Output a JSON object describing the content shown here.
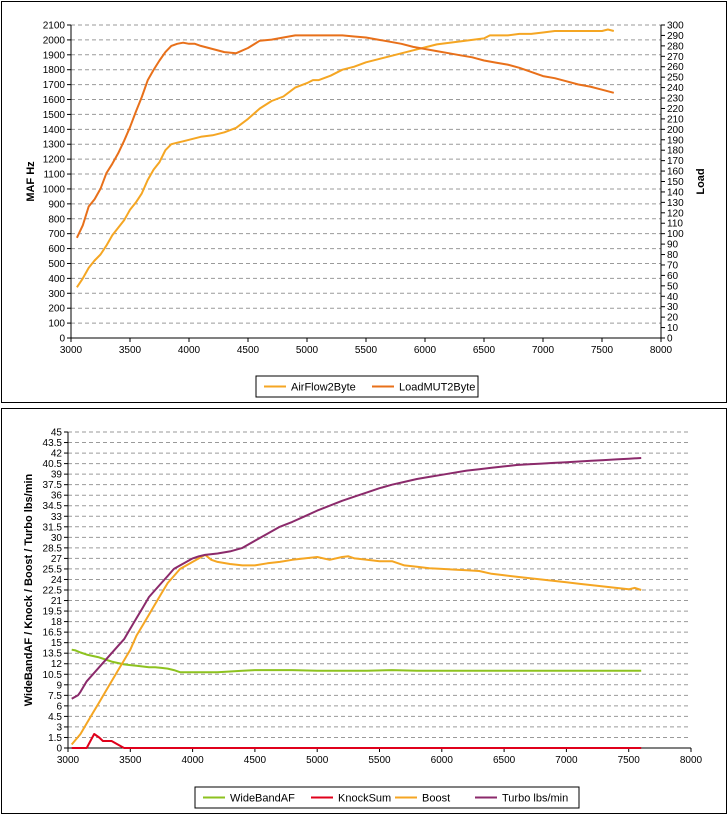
{
  "chart_data": [
    {
      "type": "line",
      "title": "",
      "xlabel": "",
      "ylabel": "MAF Hz",
      "y2label": "Load",
      "xlim": [
        3000,
        8000
      ],
      "ylim": [
        0,
        2100
      ],
      "y2lim": [
        0,
        300
      ],
      "x_ticks": [
        3000,
        3500,
        4000,
        4500,
        5000,
        5500,
        6000,
        6500,
        7000,
        7500,
        8000
      ],
      "y_ticks": [
        0,
        100,
        200,
        300,
        400,
        500,
        600,
        700,
        800,
        900,
        1000,
        1100,
        1200,
        1300,
        1400,
        1500,
        1600,
        1700,
        1800,
        1900,
        2000,
        2100
      ],
      "y2_ticks": [
        0,
        10,
        20,
        30,
        40,
        50,
        60,
        70,
        80,
        90,
        100,
        110,
        120,
        130,
        140,
        150,
        160,
        170,
        180,
        190,
        200,
        210,
        220,
        230,
        240,
        250,
        260,
        270,
        280,
        290,
        300
      ],
      "grid": true,
      "legend_position": "bottom",
      "series": [
        {
          "name": "AirFlow2Byte",
          "axis": "left",
          "color": "#f5a623",
          "x": [
            3050,
            3100,
            3150,
            3200,
            3250,
            3300,
            3350,
            3400,
            3450,
            3500,
            3550,
            3600,
            3650,
            3700,
            3750,
            3800,
            3850,
            3900,
            3950,
            4000,
            4100,
            4200,
            4300,
            4400,
            4500,
            4600,
            4700,
            4800,
            4900,
            5000,
            5050,
            5100,
            5200,
            5300,
            5400,
            5500,
            5600,
            5700,
            5800,
            5900,
            6000,
            6100,
            6200,
            6300,
            6400,
            6500,
            6550,
            6600,
            6700,
            6800,
            6900,
            7000,
            7100,
            7200,
            7300,
            7400,
            7500,
            7550,
            7600
          ],
          "y": [
            340,
            400,
            470,
            520,
            560,
            620,
            690,
            740,
            790,
            860,
            910,
            970,
            1060,
            1130,
            1180,
            1260,
            1300,
            1310,
            1320,
            1330,
            1350,
            1360,
            1380,
            1410,
            1470,
            1540,
            1590,
            1620,
            1680,
            1710,
            1730,
            1730,
            1760,
            1800,
            1820,
            1850,
            1870,
            1890,
            1910,
            1930,
            1950,
            1970,
            1980,
            1990,
            2000,
            2010,
            2030,
            2030,
            2030,
            2040,
            2040,
            2050,
            2060,
            2060,
            2060,
            2060,
            2060,
            2070,
            2060
          ]
        },
        {
          "name": "LoadMUT2Byte",
          "axis": "right",
          "color": "#e8701a",
          "x": [
            3050,
            3100,
            3150,
            3200,
            3250,
            3300,
            3350,
            3400,
            3450,
            3500,
            3550,
            3600,
            3650,
            3700,
            3750,
            3800,
            3850,
            3900,
            3950,
            4000,
            4050,
            4100,
            4200,
            4300,
            4400,
            4500,
            4600,
            4700,
            4800,
            4900,
            5000,
            5100,
            5200,
            5300,
            5400,
            5500,
            5600,
            5700,
            5800,
            5900,
            6000,
            6100,
            6200,
            6300,
            6400,
            6500,
            6600,
            6700,
            6800,
            6900,
            7000,
            7100,
            7200,
            7300,
            7400,
            7500,
            7600
          ],
          "y": [
            96,
            108,
            126,
            133,
            143,
            158,
            167,
            177,
            189,
            202,
            217,
            231,
            247,
            257,
            266,
            274,
            280,
            282,
            283,
            282,
            282,
            280,
            277,
            274,
            273,
            278,
            285,
            286,
            288,
            290,
            290,
            290,
            290,
            290,
            289,
            288,
            286,
            284,
            282,
            279,
            277,
            275,
            273,
            271,
            269,
            266,
            264,
            262,
            259,
            255,
            251,
            249,
            246,
            243,
            241,
            238,
            235
          ]
        }
      ]
    },
    {
      "type": "line",
      "title": "",
      "xlabel": "",
      "ylabel": "WideBandAF / Knock / Boost / Turbo lbs/min",
      "xlim": [
        3000,
        8000
      ],
      "ylim": [
        0,
        45
      ],
      "x_ticks": [
        3000,
        3500,
        4000,
        4500,
        5000,
        5500,
        6000,
        6500,
        7000,
        7500,
        8000
      ],
      "y_ticks": [
        "0",
        "1.5",
        "3",
        "4.5",
        "6",
        "7.5",
        "9",
        "10.5",
        "12",
        "13.5",
        "15",
        "16.5",
        "18",
        "19.5",
        "21",
        "22.5",
        "24",
        "25.5",
        "27",
        "28.5",
        "30",
        "31.5",
        "33",
        "34.5",
        "36",
        "37.5",
        "39",
        "40.5",
        "42",
        "43.5",
        "45"
      ],
      "grid": true,
      "legend_position": "bottom",
      "series": [
        {
          "name": "WideBandAF",
          "color": "#8dc21f",
          "x": [
            3030,
            3060,
            3100,
            3150,
            3200,
            3250,
            3300,
            3350,
            3400,
            3450,
            3500,
            3550,
            3600,
            3650,
            3700,
            3750,
            3800,
            3850,
            3900,
            4000,
            4100,
            4200,
            4300,
            4400,
            4500,
            4600,
            4800,
            5000,
            5200,
            5400,
            5600,
            5800,
            6000,
            6200,
            6400,
            6600,
            6800,
            7000,
            7200,
            7400,
            7600
          ],
          "y": [
            14,
            13.9,
            13.6,
            13.3,
            13.1,
            12.9,
            12.6,
            12.3,
            12.1,
            11.9,
            11.8,
            11.7,
            11.6,
            11.5,
            11.5,
            11.4,
            11.3,
            11.1,
            10.8,
            10.8,
            10.8,
            10.8,
            10.9,
            11.0,
            11.1,
            11.1,
            11.1,
            11.0,
            11.0,
            11.0,
            11.1,
            11.0,
            11.0,
            11.0,
            11.0,
            11.0,
            11.0,
            11.0,
            11.0,
            11.0,
            11.0
          ]
        },
        {
          "name": "KnockSum",
          "color": "#e0001b",
          "x": [
            3030,
            3150,
            3180,
            3210,
            3250,
            3280,
            3300,
            3350,
            3400,
            3450,
            3500,
            4000,
            5000,
            6000,
            7000,
            7600
          ],
          "y": [
            0,
            0,
            1,
            2,
            1.5,
            1,
            1,
            1,
            0.5,
            0,
            0,
            0,
            0,
            0,
            0,
            0
          ]
        },
        {
          "name": "Boost",
          "color": "#f5a623",
          "x": [
            3030,
            3100,
            3150,
            3200,
            3250,
            3300,
            3350,
            3400,
            3450,
            3500,
            3550,
            3600,
            3650,
            3700,
            3750,
            3800,
            3850,
            3900,
            3950,
            4000,
            4050,
            4100,
            4150,
            4200,
            4300,
            4400,
            4500,
            4600,
            4700,
            4800,
            4900,
            5000,
            5100,
            5200,
            5250,
            5300,
            5400,
            5500,
            5600,
            5700,
            5800,
            5900,
            6000,
            6100,
            6200,
            6300,
            6400,
            6500,
            6600,
            6700,
            6800,
            6900,
            7000,
            7100,
            7200,
            7300,
            7400,
            7500,
            7550,
            7600
          ],
          "y": [
            0.5,
            2,
            3.5,
            5,
            6.5,
            8,
            9.5,
            11,
            12.5,
            14,
            16,
            17.5,
            19,
            20.5,
            22,
            23.5,
            24.5,
            25.5,
            26,
            26.5,
            27,
            27.5,
            26.8,
            26.5,
            26.2,
            26.0,
            26.0,
            26.3,
            26.5,
            26.8,
            27.0,
            27.2,
            26.8,
            27.2,
            27.3,
            27.0,
            26.8,
            26.6,
            26.6,
            26.0,
            25.8,
            25.6,
            25.5,
            25.4,
            25.3,
            25.2,
            24.8,
            24.6,
            24.4,
            24.2,
            24.0,
            23.8,
            23.6,
            23.4,
            23.2,
            23.0,
            22.8,
            22.6,
            22.8,
            22.5
          ]
        },
        {
          "name": "Turbo lbs/min",
          "color": "#8b2a6b",
          "x": [
            3030,
            3080,
            3100,
            3150,
            3200,
            3250,
            3300,
            3350,
            3400,
            3450,
            3500,
            3550,
            3600,
            3650,
            3700,
            3750,
            3800,
            3850,
            3900,
            3950,
            4000,
            4050,
            4100,
            4200,
            4300,
            4400,
            4500,
            4600,
            4700,
            4800,
            4900,
            5000,
            5100,
            5200,
            5300,
            5400,
            5500,
            5600,
            5700,
            5800,
            5900,
            6000,
            6100,
            6200,
            6300,
            6400,
            6500,
            6600,
            6700,
            6800,
            6900,
            7000,
            7100,
            7200,
            7300,
            7400,
            7500,
            7600
          ],
          "y": [
            7,
            7.5,
            8,
            9.5,
            10.5,
            11.5,
            12.5,
            13.5,
            14.5,
            15.5,
            17,
            18.5,
            20,
            21.5,
            22.5,
            23.5,
            24.5,
            25.5,
            26,
            26.5,
            27,
            27.3,
            27.5,
            27.7,
            28,
            28.5,
            29.5,
            30.5,
            31.5,
            32.2,
            33,
            33.8,
            34.5,
            35.2,
            35.8,
            36.4,
            37,
            37.5,
            37.9,
            38.3,
            38.6,
            38.9,
            39.2,
            39.5,
            39.7,
            39.9,
            40.1,
            40.3,
            40.4,
            40.5,
            40.6,
            40.7,
            40.8,
            40.9,
            41.0,
            41.1,
            41.2,
            41.3
          ]
        }
      ]
    }
  ]
}
